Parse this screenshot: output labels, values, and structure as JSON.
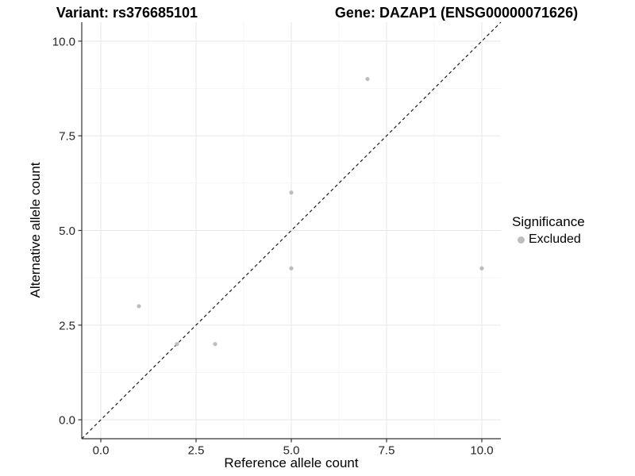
{
  "chart_data": {
    "type": "scatter",
    "title_left": "Variant: rs376685101",
    "title_right": "Gene: DAZAP1 (ENSG00000071626)",
    "xlabel": "Reference allele count",
    "ylabel": "Alternative allele count",
    "xlim": [
      -0.5,
      10.5
    ],
    "ylim": [
      -0.5,
      10.5
    ],
    "xticks": [
      0,
      2.5,
      5,
      7.5,
      10
    ],
    "xtick_labels": [
      "0.0",
      "2.5",
      "5.0",
      "7.5",
      "10.0"
    ],
    "yticks": [
      0,
      2.5,
      5,
      7.5,
      10
    ],
    "ytick_labels": [
      "0.0",
      "2.5",
      "5.0",
      "7.5",
      "10.0"
    ],
    "minor_xticks": [
      1.25,
      3.75,
      6.25,
      8.75
    ],
    "minor_yticks": [
      1.25,
      3.75,
      6.25,
      8.75
    ],
    "grid": true,
    "series": [
      {
        "name": "Excluded",
        "color": "#bdbdbd",
        "points": [
          [
            1,
            3
          ],
          [
            2,
            2
          ],
          [
            3,
            2
          ],
          [
            5,
            4
          ],
          [
            5,
            6
          ],
          [
            7,
            9
          ],
          [
            10,
            4
          ]
        ]
      }
    ],
    "reference_line": {
      "type": "identity",
      "style": "dashed",
      "color": "#1a1a1a"
    },
    "legend": {
      "title": "Significance",
      "position": "right",
      "items": [
        {
          "label": "Excluded",
          "color": "#bdbdbd"
        }
      ]
    },
    "colors": {
      "major_grid": "#e7e7e7",
      "minor_grid": "#f2f2f2",
      "axis_line": "#333333",
      "point": "#bdbdbd"
    }
  }
}
